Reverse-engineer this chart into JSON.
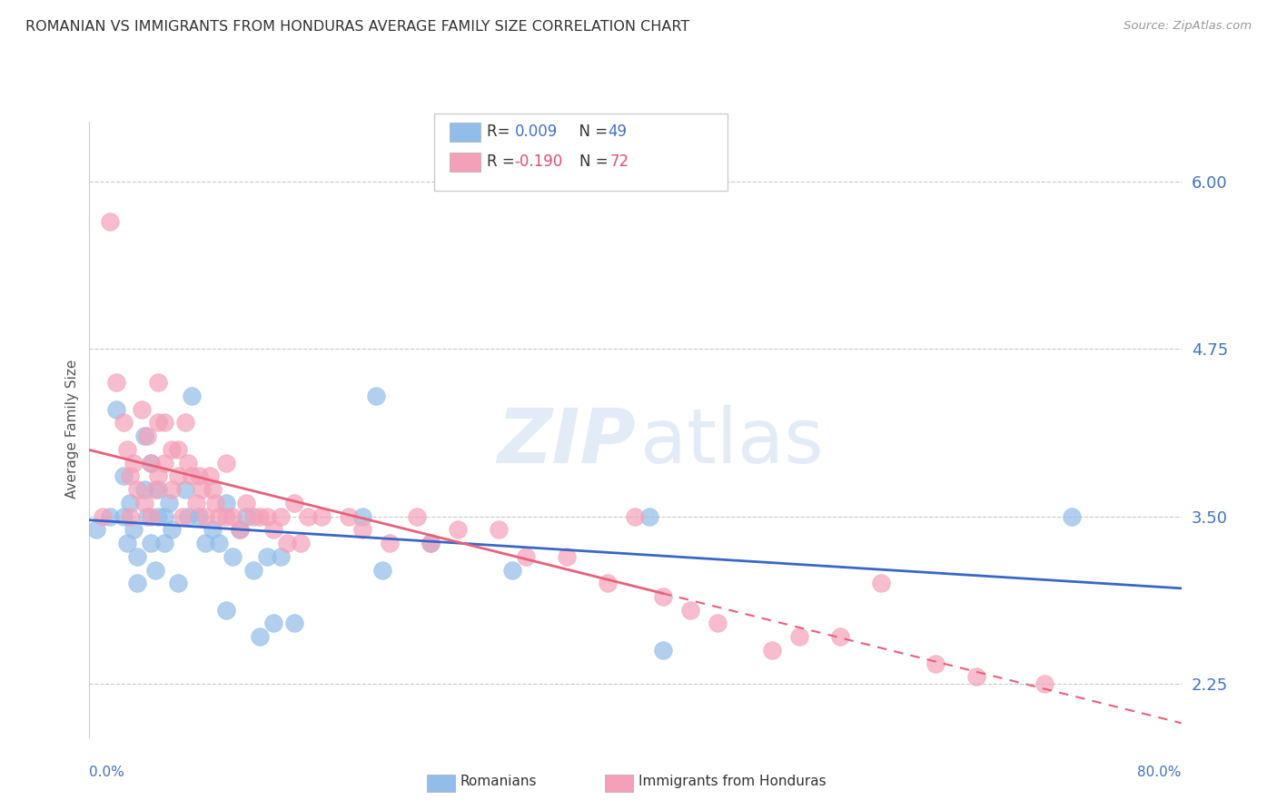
{
  "title": "ROMANIAN VS IMMIGRANTS FROM HONDURAS AVERAGE FAMILY SIZE CORRELATION CHART",
  "source": "Source: ZipAtlas.com",
  "ylabel": "Average Family Size",
  "yticks": [
    2.25,
    3.5,
    4.75,
    6.0
  ],
  "xlim": [
    0.0,
    0.8
  ],
  "ylim": [
    1.85,
    6.45
  ],
  "blue_color": "#92BDE8",
  "pink_color": "#F4A0B8",
  "blue_line_color": "#3A66C8",
  "pink_line_color": "#E8607A",
  "legend_r_blue": "0.009",
  "legend_n_blue": "49",
  "legend_r_pink": "-0.190",
  "legend_n_pink": "72",
  "legend_blue_label": "Romanians",
  "legend_pink_label": "Immigrants from Honduras",
  "background_color": "#FFFFFF",
  "grid_color": "#BBBBBB",
  "blue_x": [
    0.005,
    0.015,
    0.02,
    0.025,
    0.025,
    0.028,
    0.03,
    0.032,
    0.035,
    0.035,
    0.04,
    0.04,
    0.042,
    0.045,
    0.045,
    0.048,
    0.05,
    0.05,
    0.055,
    0.055,
    0.058,
    0.06,
    0.065,
    0.07,
    0.072,
    0.075,
    0.08,
    0.085,
    0.09,
    0.095,
    0.1,
    0.1,
    0.105,
    0.11,
    0.115,
    0.12,
    0.125,
    0.13,
    0.135,
    0.14,
    0.15,
    0.2,
    0.21,
    0.215,
    0.25,
    0.31,
    0.41,
    0.42,
    0.72
  ],
  "blue_y": [
    3.4,
    3.5,
    4.3,
    3.8,
    3.5,
    3.3,
    3.6,
    3.4,
    3.2,
    3.0,
    4.1,
    3.7,
    3.5,
    3.9,
    3.3,
    3.1,
    3.7,
    3.5,
    3.5,
    3.3,
    3.6,
    3.4,
    3.0,
    3.7,
    3.5,
    4.4,
    3.5,
    3.3,
    3.4,
    3.3,
    3.6,
    2.8,
    3.2,
    3.4,
    3.5,
    3.1,
    2.6,
    3.2,
    2.7,
    3.2,
    2.7,
    3.5,
    4.4,
    3.1,
    3.3,
    3.1,
    3.5,
    2.5,
    3.5
  ],
  "pink_x": [
    0.01,
    0.015,
    0.02,
    0.025,
    0.028,
    0.03,
    0.03,
    0.032,
    0.035,
    0.038,
    0.04,
    0.042,
    0.045,
    0.045,
    0.048,
    0.05,
    0.05,
    0.05,
    0.055,
    0.055,
    0.06,
    0.06,
    0.065,
    0.065,
    0.068,
    0.07,
    0.072,
    0.075,
    0.078,
    0.08,
    0.082,
    0.085,
    0.088,
    0.09,
    0.092,
    0.095,
    0.1,
    0.1,
    0.105,
    0.11,
    0.115,
    0.12,
    0.125,
    0.13,
    0.135,
    0.14,
    0.145,
    0.15,
    0.155,
    0.16,
    0.17,
    0.19,
    0.2,
    0.22,
    0.24,
    0.25,
    0.27,
    0.3,
    0.32,
    0.35,
    0.38,
    0.4,
    0.42,
    0.44,
    0.46,
    0.5,
    0.52,
    0.55,
    0.58,
    0.62,
    0.65,
    0.7
  ],
  "pink_y": [
    3.5,
    5.7,
    4.5,
    4.2,
    4.0,
    3.8,
    3.5,
    3.9,
    3.7,
    4.3,
    3.6,
    4.1,
    3.9,
    3.5,
    3.7,
    4.5,
    4.2,
    3.8,
    4.2,
    3.9,
    4.0,
    3.7,
    4.0,
    3.8,
    3.5,
    4.2,
    3.9,
    3.8,
    3.6,
    3.8,
    3.7,
    3.5,
    3.8,
    3.7,
    3.6,
    3.5,
    3.9,
    3.5,
    3.5,
    3.4,
    3.6,
    3.5,
    3.5,
    3.5,
    3.4,
    3.5,
    3.3,
    3.6,
    3.3,
    3.5,
    3.5,
    3.5,
    3.4,
    3.3,
    3.5,
    3.3,
    3.4,
    3.4,
    3.2,
    3.2,
    3.0,
    3.5,
    2.9,
    2.8,
    2.7,
    2.5,
    2.6,
    2.6,
    3.0,
    2.4,
    2.3,
    2.25
  ]
}
